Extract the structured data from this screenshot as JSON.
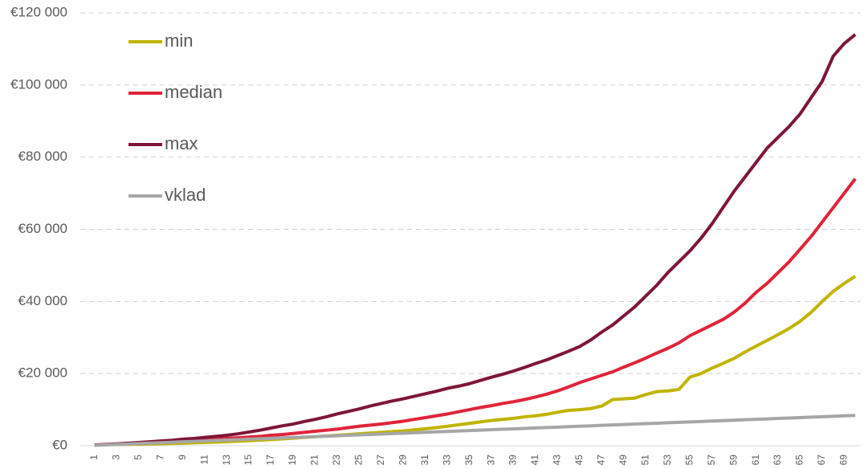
{
  "chart_data": {
    "type": "line",
    "categories": [
      1,
      null,
      3,
      null,
      5,
      null,
      7,
      null,
      9,
      null,
      11,
      null,
      13,
      null,
      15,
      null,
      17,
      null,
      19,
      null,
      21,
      null,
      23,
      null,
      25,
      null,
      27,
      null,
      29,
      null,
      31,
      null,
      33,
      null,
      35,
      null,
      37,
      null,
      39,
      null,
      41,
      null,
      43,
      null,
      45,
      null,
      47,
      null,
      49,
      null,
      51,
      null,
      53,
      null,
      55,
      null,
      57,
      null,
      59,
      null,
      61,
      null,
      63,
      null,
      65,
      null,
      67,
      null,
      69,
      null
    ],
    "series": [
      {
        "name": "min",
        "color": "#c0b400",
        "values": [
          200,
          300,
          350,
          400,
          450,
          500,
          550,
          650,
          700,
          800,
          900,
          1000,
          1100,
          1250,
          1400,
          1550,
          1700,
          1900,
          2100,
          2300,
          2500,
          2700,
          2900,
          3100,
          3300,
          3500,
          3700,
          3900,
          4100,
          4400,
          4700,
          5000,
          5400,
          5800,
          6200,
          6600,
          7000,
          7300,
          7600,
          8000,
          8300,
          8700,
          9300,
          9800,
          10000,
          10300,
          11000,
          12800,
          13000,
          13200,
          14200,
          15000,
          15200,
          15600,
          19000,
          20000,
          21500,
          22800,
          24200,
          26000,
          27600,
          29200,
          30800,
          32500,
          34500,
          37000,
          40000,
          42800,
          45000,
          47000
        ]
      },
      {
        "name": "median",
        "color": "#e0243a",
        "values": [
          200,
          300,
          400,
          500,
          600,
          750,
          900,
          1050,
          1200,
          1400,
          1600,
          1800,
          2000,
          2200,
          2400,
          2600,
          2900,
          3100,
          3400,
          3700,
          4000,
          4300,
          4600,
          5000,
          5400,
          5700,
          6000,
          6400,
          6800,
          7300,
          7800,
          8300,
          8800,
          9400,
          10000,
          10600,
          11100,
          11700,
          12200,
          12800,
          13500,
          14300,
          15200,
          16300,
          17500,
          18500,
          19500,
          20500,
          21800,
          23000,
          24300,
          25700,
          27000,
          28500,
          30500,
          32000,
          33500,
          35000,
          37000,
          39500,
          42500,
          45000,
          48000,
          51000,
          54500,
          58000,
          62000,
          66000,
          70000,
          74000
        ]
      },
      {
        "name": "max",
        "color": "#7e1737",
        "values": [
          200,
          350,
          500,
          700,
          900,
          1100,
          1300,
          1500,
          1800,
          2000,
          2300,
          2600,
          2900,
          3300,
          3800,
          4300,
          4900,
          5500,
          6000,
          6700,
          7300,
          8000,
          8800,
          9500,
          10200,
          11000,
          11700,
          12400,
          13000,
          13700,
          14400,
          15100,
          15900,
          16500,
          17200,
          18100,
          19000,
          19800,
          20700,
          21700,
          22800,
          23800,
          25000,
          26200,
          27500,
          29300,
          31500,
          33500,
          36000,
          38500,
          41500,
          44500,
          48000,
          51000,
          54000,
          57500,
          61500,
          66000,
          70500,
          74500,
          78500,
          82500,
          85500,
          88500,
          92000,
          96500,
          101000,
          108000,
          111500,
          114000
        ]
      },
      {
        "name": "vklad",
        "color": "#a6a6a6",
        "values": [
          120,
          240,
          360,
          480,
          600,
          720,
          840,
          960,
          1080,
          1200,
          1320,
          1440,
          1560,
          1680,
          1800,
          1920,
          2040,
          2160,
          2280,
          2400,
          2520,
          2640,
          2760,
          2880,
          3000,
          3120,
          3240,
          3360,
          3480,
          3600,
          3720,
          3840,
          3960,
          4080,
          4200,
          4320,
          4440,
          4560,
          4680,
          4800,
          4920,
          5040,
          5160,
          5280,
          5400,
          5520,
          5640,
          5760,
          5880,
          6000,
          6120,
          6240,
          6360,
          6480,
          6600,
          6720,
          6840,
          6960,
          7080,
          7200,
          7320,
          7440,
          7560,
          7680,
          7800,
          7920,
          8040,
          8160,
          8280,
          8400
        ]
      }
    ],
    "ylim": [
      0,
      120000
    ],
    "yticks": [
      {
        "value": 0,
        "label": "€0"
      },
      {
        "value": 20000,
        "label": "€20 000"
      },
      {
        "value": 40000,
        "label": "€40 000"
      },
      {
        "value": 60000,
        "label": "€60 000"
      },
      {
        "value": 80000,
        "label": "€80 000"
      },
      {
        "value": 100000,
        "label": "€100 000"
      },
      {
        "value": 120000,
        "label": "€120 000"
      }
    ],
    "grid": true,
    "legend": "upper-left"
  }
}
